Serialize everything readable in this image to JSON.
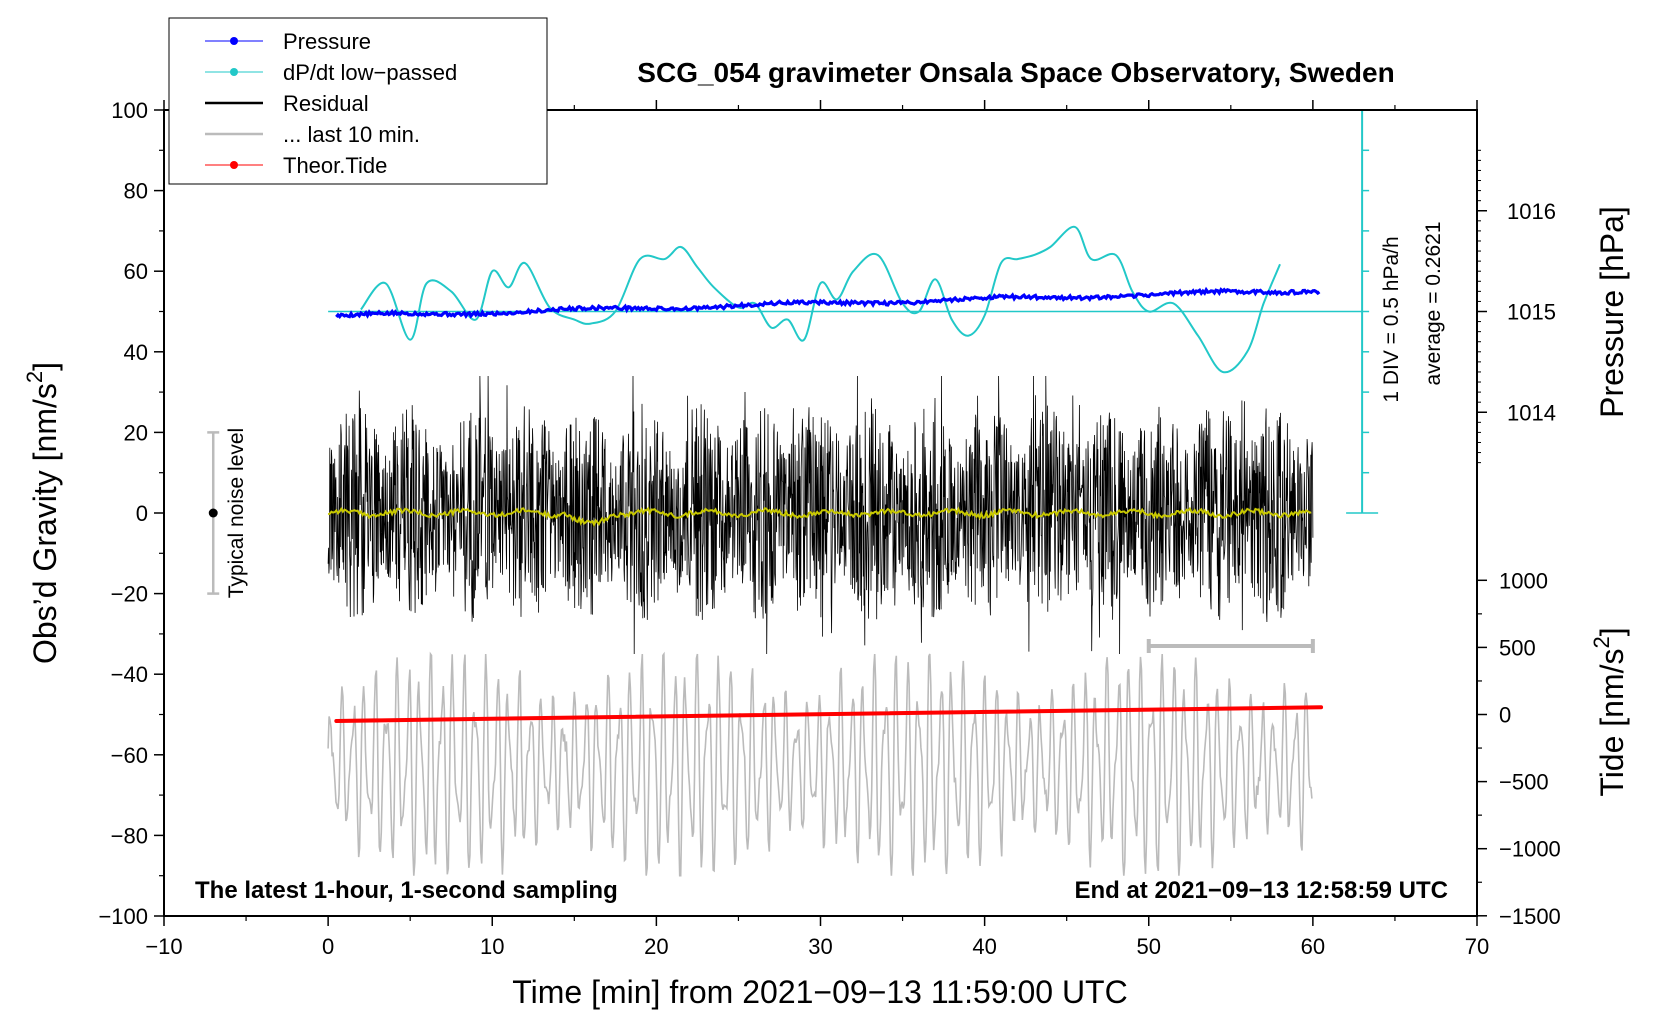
{
  "chart_data": {
    "type": "line",
    "title": "SCG_054 gravimeter Onsala Space Observatory, Sweden",
    "xlabel": "Time [min] from 2021−09−13 11:59:00 UTC",
    "ylabel_main": "Obs’d Gravity [nm/s",
    "ylabel_main_sup": "2",
    "ylabel_main_close": "]",
    "ylabel_pressure": "Pressure [hPa]",
    "ylabel_tide": "Tide [nm/s",
    "ylabel_tide_sup": "2",
    "ylabel_tide_close": "]",
    "xlim": [
      -10,
      70
    ],
    "ylim": [
      -100,
      100
    ],
    "x_ticks": [
      "−10",
      "0",
      "10",
      "20",
      "30",
      "40",
      "50",
      "60",
      "70"
    ],
    "x_tick_values": [
      -10,
      0,
      10,
      20,
      30,
      40,
      50,
      60,
      70
    ],
    "y_ticks": [
      "100",
      "80",
      "60",
      "40",
      "20",
      "0",
      "−20",
      "−40",
      "−60",
      "−80",
      "−100"
    ],
    "y_tick_values": [
      100,
      80,
      60,
      40,
      20,
      0,
      -20,
      -40,
      -60,
      -80,
      -100
    ],
    "pressure_axis": {
      "ticks": [
        "1016",
        "1015",
        "1014"
      ],
      "tick_values": [
        1016,
        1015,
        1014
      ],
      "gravity_at_1015": 50,
      "gravity_per_hpa": 25
    },
    "tide_axis": {
      "ticks": [
        "1000",
        "500",
        "0",
        "−500",
        "−1000",
        "−1500"
      ],
      "tick_values": [
        1000,
        500,
        0,
        -500,
        -1000,
        -1500
      ],
      "gravity_at_zero": -50,
      "gravity_per_nms2": 0.0333
    },
    "legend": [
      {
        "label": "Pressure",
        "color": "#0000ff",
        "style": "line-dot"
      },
      {
        "label": "dP/dt low−passed",
        "color": "#22c8c8",
        "style": "line-dot"
      },
      {
        "label": "Residual",
        "color": "#000000",
        "style": "line"
      },
      {
        "label": "... last 10 min.",
        "color": "#bbbbbb",
        "style": "line"
      },
      {
        "label": "Theor.Tide",
        "color": "#ff0000",
        "style": "line-dot"
      }
    ],
    "legend_position": "top-left",
    "series": [
      {
        "name": "Pressure",
        "x_start": 0.5,
        "x_end": 60.5,
        "y_start": 48.8,
        "y_end": 55.3
      },
      {
        "name": "dP/dt low−passed",
        "x": [
          2,
          3.5,
          5,
          6,
          7.5,
          9,
          10,
          11,
          12,
          13.5,
          15,
          16,
          17.5,
          19,
          20.5,
          21.5,
          22.5,
          23.5,
          25,
          26,
          27,
          28,
          29,
          30,
          31,
          32,
          33.5,
          35,
          36,
          37,
          38,
          39,
          40,
          41,
          42,
          43,
          44,
          45.5,
          46.5,
          48,
          49,
          50,
          51.5,
          53,
          54.5,
          56,
          57,
          58
        ],
        "y": [
          50.5,
          57,
          43,
          57,
          55,
          48,
          60,
          56,
          62,
          51,
          48,
          47,
          50,
          63,
          63,
          66,
          61,
          56,
          51,
          52,
          46,
          48,
          43,
          57,
          53,
          60,
          64,
          52,
          50,
          58,
          48,
          44,
          49,
          62,
          63,
          64,
          66,
          71,
          63,
          64,
          55,
          50,
          52,
          44,
          35,
          40,
          52,
          61.7
        ]
      },
      {
        "name": "dP/dt baseline",
        "y": 50
      },
      {
        "name": "Residual",
        "x_start": 0,
        "x_end": 60,
        "y_min": -35,
        "y_max": 34
      },
      {
        "name": "Residual low-passed",
        "x_start": 0,
        "x_end": 60,
        "y_approx": 0,
        "color": "#c8c800"
      },
      {
        "name": "... last 10 min.",
        "x_start": 0,
        "x_end": 60,
        "y_min": -90,
        "y_max": -35
      },
      {
        "name": "Theor.Tide",
        "x_start": 0.5,
        "x_end": 60.5,
        "y_start": -51.6,
        "y_end": -48.2
      }
    ],
    "annotations": {
      "noise_label": "Typical noise level",
      "noise_x": -7,
      "noise_y_center": 0,
      "noise_y_half": 20,
      "scale_div": "1 DIV = 0.5 hPa/h",
      "scale_avg": "average = 0.2621",
      "scale_x": 63,
      "scale_y_top": 100,
      "scale_y_bottom": 0,
      "scale_divisions": 10,
      "window_bar_x": [
        50,
        60
      ],
      "window_bar_y": -33,
      "bottom_left": "The latest 1-hour, 1-second sampling",
      "bottom_right": "End at 2021−09−13 12:58:59 UTC"
    }
  }
}
